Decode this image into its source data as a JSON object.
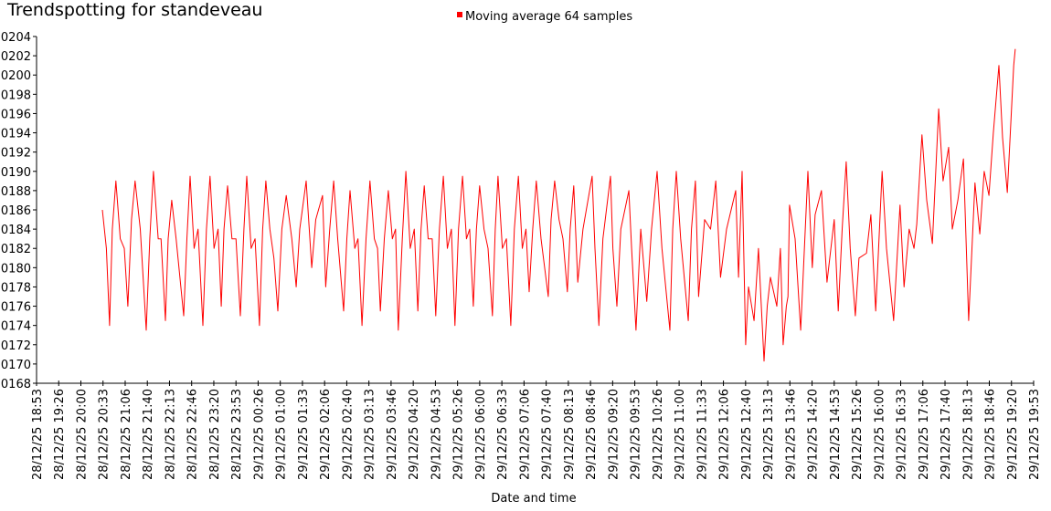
{
  "chart_data": {
    "type": "line",
    "title": "Trendspotting for standeveau",
    "xlabel": "Date and time",
    "ylabel": "",
    "legend": {
      "position": "top-center",
      "entries": [
        "Moving average 64 samples"
      ]
    },
    "grid": false,
    "x_units": "hours since 28/12/25 18:53",
    "xlim": [
      0,
      25
    ],
    "ylim": [
      168,
      204
    ],
    "y_ticks": [
      168,
      170,
      172,
      174,
      176,
      178,
      180,
      182,
      184,
      186,
      188,
      190,
      192,
      194,
      196,
      198,
      200,
      202,
      204
    ],
    "y_tick_labels": [
      "0168",
      "0170",
      "0172",
      "0174",
      "0176",
      "0178",
      "0180",
      "0182",
      "0184",
      "0186",
      "0188",
      "0190",
      "0192",
      "0194",
      "0196",
      "0198",
      "0200",
      "0202",
      "0204"
    ],
    "x_tick_labels": [
      "28/12/25 18:53",
      "28/12/25 19:26",
      "28/12/25 20:00",
      "28/12/25 20:33",
      "28/12/25 21:06",
      "28/12/25 21:40",
      "28/12/25 22:13",
      "28/12/25 22:46",
      "28/12/25 23:20",
      "28/12/25 23:53",
      "29/12/25 00:26",
      "29/12/25 01:00",
      "29/12/25 01:33",
      "29/12/25 02:06",
      "29/12/25 02:40",
      "29/12/25 03:13",
      "29/12/25 03:46",
      "29/12/25 04:20",
      "29/12/25 04:53",
      "29/12/25 05:26",
      "29/12/25 06:00",
      "29/12/25 06:33",
      "29/12/25 07:06",
      "29/12/25 07:40",
      "29/12/25 08:13",
      "29/12/25 08:46",
      "29/12/25 09:20",
      "29/12/25 09:53",
      "29/12/25 10:26",
      "29/12/25 11:00",
      "29/12/25 11:33",
      "29/12/25 12:06",
      "29/12/25 12:40",
      "29/12/25 13:13",
      "29/12/25 13:46",
      "29/12/25 14:20",
      "29/12/25 14:53",
      "29/12/25 15:26",
      "29/12/25 16:00",
      "29/12/25 16:33",
      "29/12/25 17:06",
      "29/12/25 17:40",
      "29/12/25 18:13",
      "29/12/25 18:46",
      "29/12/25 19:20",
      "29/12/25 19:53"
    ],
    "series": [
      {
        "name": "Moving average 64 samples",
        "color": "#ff0000",
        "points": [
          [
            1.65,
            186
          ],
          [
            1.75,
            182
          ],
          [
            1.83,
            174
          ],
          [
            1.9,
            184
          ],
          [
            1.99,
            189
          ],
          [
            2.1,
            183
          ],
          [
            2.2,
            182
          ],
          [
            2.29,
            176
          ],
          [
            2.38,
            185
          ],
          [
            2.47,
            189
          ],
          [
            2.6,
            184
          ],
          [
            2.75,
            173.5
          ],
          [
            2.84,
            183
          ],
          [
            2.93,
            190
          ],
          [
            3.05,
            183
          ],
          [
            3.12,
            183
          ],
          [
            3.23,
            174.5
          ],
          [
            3.3,
            183
          ],
          [
            3.39,
            187
          ],
          [
            3.5,
            183
          ],
          [
            3.69,
            175
          ],
          [
            3.77,
            183
          ],
          [
            3.85,
            189.5
          ],
          [
            3.95,
            182
          ],
          [
            4.05,
            184
          ],
          [
            4.17,
            174
          ],
          [
            4.26,
            184
          ],
          [
            4.35,
            189.5
          ],
          [
            4.45,
            182
          ],
          [
            4.55,
            184
          ],
          [
            4.63,
            176
          ],
          [
            4.7,
            184
          ],
          [
            4.79,
            188.5
          ],
          [
            4.9,
            183
          ],
          [
            5.0,
            183
          ],
          [
            5.11,
            175
          ],
          [
            5.2,
            184
          ],
          [
            5.27,
            189.5
          ],
          [
            5.38,
            182
          ],
          [
            5.48,
            183
          ],
          [
            5.59,
            174
          ],
          [
            5.67,
            184
          ],
          [
            5.75,
            189
          ],
          [
            5.85,
            184
          ],
          [
            5.95,
            181
          ],
          [
            6.05,
            175.5
          ],
          [
            6.15,
            184
          ],
          [
            6.26,
            187.5
          ],
          [
            6.4,
            183
          ],
          [
            6.51,
            178
          ],
          [
            6.6,
            184
          ],
          [
            6.76,
            189
          ],
          [
            6.9,
            180
          ],
          [
            7.0,
            185
          ],
          [
            7.17,
            187.5
          ],
          [
            7.25,
            178
          ],
          [
            7.35,
            184
          ],
          [
            7.45,
            189
          ],
          [
            7.55,
            183
          ],
          [
            7.7,
            175.5
          ],
          [
            7.78,
            183
          ],
          [
            7.86,
            188
          ],
          [
            7.98,
            182
          ],
          [
            8.06,
            183
          ],
          [
            8.16,
            174
          ],
          [
            8.26,
            183
          ],
          [
            8.36,
            189
          ],
          [
            8.47,
            183
          ],
          [
            8.55,
            182
          ],
          [
            8.62,
            175.5
          ],
          [
            8.72,
            183
          ],
          [
            8.82,
            188
          ],
          [
            8.92,
            183
          ],
          [
            9.0,
            184
          ],
          [
            9.07,
            173.5
          ],
          [
            9.17,
            183
          ],
          [
            9.26,
            190
          ],
          [
            9.37,
            182
          ],
          [
            9.47,
            184
          ],
          [
            9.56,
            175.5
          ],
          [
            9.64,
            184
          ],
          [
            9.72,
            188.5
          ],
          [
            9.82,
            183
          ],
          [
            9.92,
            183
          ],
          [
            10.01,
            175
          ],
          [
            10.1,
            184
          ],
          [
            10.2,
            189.5
          ],
          [
            10.3,
            182
          ],
          [
            10.4,
            184
          ],
          [
            10.49,
            174
          ],
          [
            10.58,
            184
          ],
          [
            10.68,
            189.5
          ],
          [
            10.78,
            183
          ],
          [
            10.86,
            184
          ],
          [
            10.95,
            176
          ],
          [
            11.03,
            184
          ],
          [
            11.11,
            188.5
          ],
          [
            11.22,
            184
          ],
          [
            11.32,
            182
          ],
          [
            11.43,
            175
          ],
          [
            11.5,
            184
          ],
          [
            11.57,
            189.5
          ],
          [
            11.68,
            182
          ],
          [
            11.78,
            183
          ],
          [
            11.89,
            174
          ],
          [
            11.98,
            184
          ],
          [
            12.08,
            189.5
          ],
          [
            12.18,
            182
          ],
          [
            12.27,
            184
          ],
          [
            12.35,
            177.5
          ],
          [
            12.44,
            184
          ],
          [
            12.53,
            189
          ],
          [
            12.65,
            183
          ],
          [
            12.83,
            177
          ],
          [
            12.9,
            185
          ],
          [
            12.99,
            189
          ],
          [
            13.1,
            185
          ],
          [
            13.2,
            183
          ],
          [
            13.31,
            177.5
          ],
          [
            13.38,
            184
          ],
          [
            13.47,
            188.5
          ],
          [
            13.57,
            178.5
          ],
          [
            13.7,
            184
          ],
          [
            13.93,
            189.5
          ],
          [
            14.0,
            182
          ],
          [
            14.1,
            174
          ],
          [
            14.2,
            183
          ],
          [
            14.39,
            189.5
          ],
          [
            14.45,
            182
          ],
          [
            14.55,
            176
          ],
          [
            14.65,
            184
          ],
          [
            14.85,
            188
          ],
          [
            14.92,
            182
          ],
          [
            15.03,
            173.5
          ],
          [
            15.15,
            184
          ],
          [
            15.3,
            176.5
          ],
          [
            15.42,
            184
          ],
          [
            15.56,
            190
          ],
          [
            15.68,
            182
          ],
          [
            15.88,
            173.5
          ],
          [
            15.95,
            184
          ],
          [
            16.04,
            190
          ],
          [
            16.15,
            183
          ],
          [
            16.34,
            174.5
          ],
          [
            16.42,
            184
          ],
          [
            16.52,
            189
          ],
          [
            16.6,
            177
          ],
          [
            16.75,
            185
          ],
          [
            16.9,
            184
          ],
          [
            17.03,
            189
          ],
          [
            17.15,
            179
          ],
          [
            17.3,
            184
          ],
          [
            17.53,
            188
          ],
          [
            17.6,
            179
          ],
          [
            17.69,
            190
          ],
          [
            17.78,
            172
          ],
          [
            17.85,
            178
          ],
          [
            17.99,
            174.5
          ],
          [
            18.1,
            182
          ],
          [
            18.24,
            170.3
          ],
          [
            18.32,
            176
          ],
          [
            18.4,
            179
          ],
          [
            18.56,
            176
          ],
          [
            18.65,
            182
          ],
          [
            18.72,
            172
          ],
          [
            18.8,
            176
          ],
          [
            18.84,
            177
          ],
          [
            18.88,
            186.5
          ],
          [
            19.02,
            183
          ],
          [
            19.16,
            173.5
          ],
          [
            19.34,
            190
          ],
          [
            19.45,
            180
          ],
          [
            19.52,
            185.5
          ],
          [
            19.68,
            188
          ],
          [
            19.82,
            178.5
          ],
          [
            20.0,
            185
          ],
          [
            20.1,
            175.5
          ],
          [
            20.2,
            184
          ],
          [
            20.3,
            191
          ],
          [
            20.4,
            182
          ],
          [
            20.53,
            175
          ],
          [
            20.62,
            181
          ],
          [
            20.81,
            181.5
          ],
          [
            20.92,
            185.5
          ],
          [
            21.04,
            175.5
          ],
          [
            21.2,
            190
          ],
          [
            21.31,
            182
          ],
          [
            21.49,
            174.5
          ],
          [
            21.65,
            186.5
          ],
          [
            21.75,
            178
          ],
          [
            21.88,
            184
          ],
          [
            22.0,
            182
          ],
          [
            22.07,
            184.5
          ],
          [
            22.2,
            193.8
          ],
          [
            22.32,
            187
          ],
          [
            22.46,
            182.5
          ],
          [
            22.62,
            196.5
          ],
          [
            22.73,
            189
          ],
          [
            22.87,
            192.5
          ],
          [
            22.96,
            184
          ],
          [
            23.1,
            187
          ],
          [
            23.24,
            191.3
          ],
          [
            23.37,
            174.5
          ],
          [
            23.53,
            188.8
          ],
          [
            23.65,
            183.5
          ],
          [
            23.76,
            190
          ],
          [
            23.88,
            187.5
          ],
          [
            23.99,
            194
          ],
          [
            24.13,
            201
          ],
          [
            24.22,
            193.5
          ],
          [
            24.34,
            187.8
          ],
          [
            24.5,
            201
          ],
          [
            24.54,
            202.7
          ]
        ]
      }
    ]
  }
}
